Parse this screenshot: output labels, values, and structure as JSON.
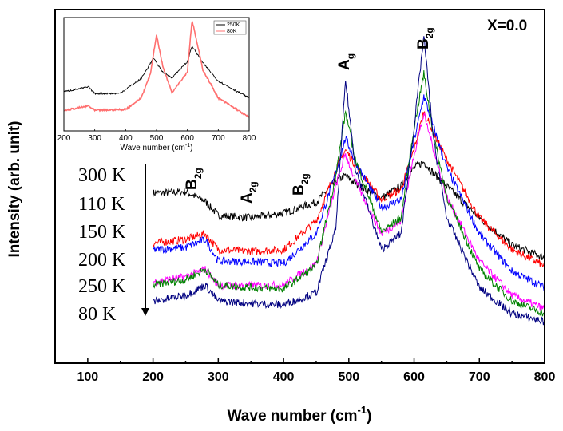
{
  "chart_data": {
    "type": "line",
    "title": "",
    "xlabel": "Wave number (cm",
    "xlabel_sup": "-1",
    "xlabel_end": ")",
    "ylabel": "Intensity (arb. unit)",
    "xlim": [
      50,
      800
    ],
    "ylim": [
      0,
      100
    ],
    "x_ticks": [
      "100",
      "200",
      "300",
      "400",
      "500",
      "600",
      "700",
      "800"
    ],
    "annotation_main": "X=0.0",
    "peak_labels": [
      {
        "base": "B",
        "sub": "2g",
        "x": 270
      },
      {
        "base": "A",
        "sub": "2g",
        "x": 350
      },
      {
        "base": "B",
        "sub": "2g",
        "x": 430
      },
      {
        "base": "A",
        "sub": "g",
        "x": 495
      },
      {
        "base": "B",
        "sub": "2g",
        "x": 615
      }
    ],
    "legend_order": [
      "300 K",
      "110 K",
      "150 K",
      "200 K",
      "250 K",
      "80 K"
    ],
    "x": [
      200,
      250,
      280,
      300,
      350,
      400,
      450,
      480,
      495,
      510,
      550,
      580,
      600,
      615,
      630,
      650,
      700,
      750,
      800
    ],
    "series": [
      {
        "name": "300 K",
        "color": "#000000",
        "values": [
          48.1,
          48.5,
          45.8,
          41.8,
          41.1,
          42.4,
          45.6,
          51.5,
          53.0,
          50.8,
          46.7,
          50.1,
          55.3,
          56.9,
          53.7,
          50.1,
          41.1,
          33.4,
          29.8
        ]
      },
      {
        "name": "110 K",
        "color": "#ff0000",
        "values": [
          33.9,
          35.0,
          36.6,
          32.1,
          31.6,
          32.1,
          40.2,
          54.6,
          60.3,
          56.0,
          46.3,
          49.2,
          60.5,
          71.1,
          65.0,
          57.6,
          41.1,
          32.1,
          27.5
        ]
      },
      {
        "name": "150 K",
        "color": "#0000ff",
        "values": [
          32.1,
          32.7,
          35.0,
          28.9,
          28.7,
          28.2,
          36.6,
          53.7,
          63.7,
          56.9,
          44.0,
          46.3,
          62.8,
          75.6,
          66.6,
          55.3,
          36.6,
          26.0,
          21.4
        ]
      },
      {
        "name": "200 K",
        "color": "#ff00ff",
        "values": [
          23.0,
          24.4,
          26.6,
          22.1,
          21.9,
          22.1,
          28.2,
          50.1,
          59.1,
          51.5,
          36.6,
          40.2,
          59.1,
          70.4,
          60.5,
          47.0,
          28.9,
          19.2,
          15.3
        ]
      },
      {
        "name": "250 K",
        "color": "#008000",
        "values": [
          22.1,
          23.7,
          26.6,
          22.1,
          21.4,
          21.0,
          27.5,
          53.0,
          71.1,
          57.6,
          37.2,
          41.1,
          66.6,
          81.9,
          64.3,
          47.0,
          26.6,
          17.6,
          14.0
        ]
      },
      {
        "name": "80 K",
        "color": "#000080",
        "values": [
          17.4,
          19.2,
          22.1,
          17.6,
          16.9,
          16.5,
          19.9,
          37.9,
          80.1,
          55.3,
          32.1,
          36.6,
          66.6,
          92.6,
          62.8,
          41.1,
          21.4,
          14.0,
          11.7
        ]
      }
    ],
    "inset": {
      "type": "line",
      "xlabel": "Wave number (cm",
      "xlabel_sup": "-1",
      "xlabel_end": ")",
      "xlim": [
        200,
        800
      ],
      "ylim": [
        0,
        100
      ],
      "x_ticks": [
        "200",
        "300",
        "400",
        "500",
        "600",
        "700",
        "800"
      ],
      "legend_placement": "top-right",
      "series": [
        {
          "name": "250K",
          "color": "#000000",
          "x": [
            200,
            280,
            300,
            380,
            450,
            490,
            520,
            550,
            600,
            615,
            650,
            700,
            800
          ],
          "values": [
            34.5,
            38.7,
            33,
            33,
            46,
            64,
            52,
            47,
            61,
            75,
            60,
            44,
            29
          ]
        },
        {
          "name": "80K",
          "color": "#ff7070",
          "x": [
            200,
            280,
            300,
            400,
            450,
            480,
            500,
            520,
            550,
            600,
            615,
            650,
            700,
            800
          ],
          "values": [
            18,
            22,
            18,
            19,
            29,
            50,
            85,
            57,
            34,
            52,
            98,
            54,
            29,
            12
          ]
        }
      ]
    }
  }
}
